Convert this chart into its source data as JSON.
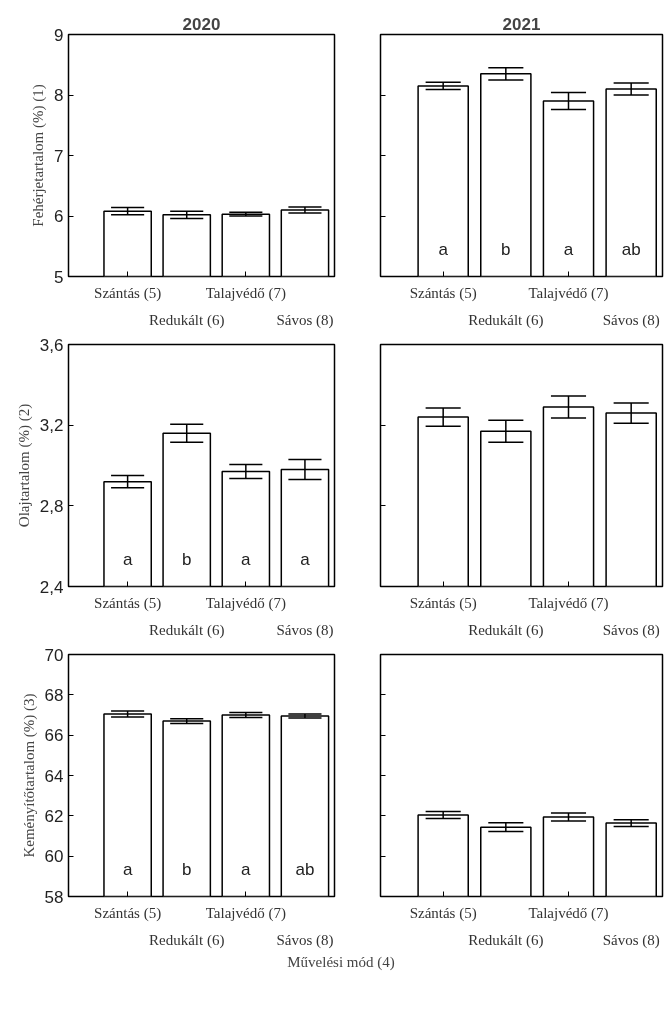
{
  "chart_data": [
    {
      "type": "bar",
      "title": "2020",
      "ylabel": "Fehérjetartalom (%) (1)",
      "categories": [
        "Szántás (5)",
        "Redukált (6)",
        "Talajvédő (7)",
        "Sávos (8)"
      ],
      "values": [
        6.08,
        6.02,
        6.03,
        6.1
      ],
      "errors": [
        0.06,
        0.06,
        0.03,
        0.05
      ],
      "color": "#ffffff",
      "ylim": [
        5,
        9
      ],
      "yticks": [
        5,
        6,
        7,
        8,
        9
      ],
      "grid": false
    },
    {
      "type": "bar",
      "title": "2021",
      "categories": [
        "Szántás (5)",
        "Redukált (6)",
        "Talajvédő (7)",
        "Sávos (8)"
      ],
      "values": [
        8.15,
        8.35,
        7.9,
        8.1
      ],
      "errors": [
        0.06,
        0.1,
        0.14,
        0.1
      ],
      "color": "#ffffff",
      "ylim": [
        5,
        9
      ],
      "yticks": [
        5,
        6,
        7,
        8,
        9
      ],
      "grid": false,
      "tick_labels": "x",
      "annotations": [
        "a",
        "b",
        "a",
        "ab"
      ]
    },
    {
      "type": "bar",
      "ylabel": "Olajtartalom (%) (2)",
      "categories": [
        "Szántás (5)",
        "Redukált (6)",
        "Talajvédő (7)",
        "Sávos (8)"
      ],
      "values": [
        2.92,
        3.16,
        2.97,
        2.98
      ],
      "errors": [
        0.03,
        0.045,
        0.035,
        0.05
      ],
      "color": "#ffffff",
      "ylim": [
        2.4,
        3.6
      ],
      "yticks": [
        {
          "value": 2.4,
          "label": "2,4"
        },
        {
          "value": 2.8,
          "label": "2,8"
        },
        {
          "value": 3.2,
          "label": "3,2"
        },
        {
          "value": 3.6,
          "label": "3,6"
        }
      ],
      "grid": false,
      "annotations": [
        "a",
        "b",
        "a",
        "a"
      ]
    },
    {
      "type": "bar",
      "categories": [
        "Szántás (5)",
        "Redukált (6)",
        "Talajvédő (7)",
        "Sávos (8)"
      ],
      "values": [
        3.24,
        3.17,
        3.29,
        3.26
      ],
      "errors": [
        0.045,
        0.055,
        0.055,
        0.05
      ],
      "color": "#ffffff",
      "ylim": [
        2.4,
        3.6
      ],
      "yticks": [
        {
          "value": 2.4,
          "label": null
        },
        {
          "value": 2.8,
          "label": null
        },
        {
          "value": 3.2,
          "label": null
        },
        {
          "value": 3.6,
          "label": null
        }
      ],
      "grid": false,
      "tick_labels": "x"
    },
    {
      "type": "bar",
      "ylabel": "Keményítőtartalom (%) (3)",
      "xlabel": "Művelési mód (4)",
      "categories": [
        "Szántás (5)",
        "Redukált (6)",
        "Talajvédő (7)",
        "Sávos (8)"
      ],
      "values": [
        67.05,
        66.7,
        67.0,
        66.95
      ],
      "errors": [
        0.15,
        0.12,
        0.12,
        0.1
      ],
      "color": "#ffffff",
      "ylim": [
        58,
        70
      ],
      "yticks": [
        58,
        60,
        62,
        64,
        66,
        68,
        70
      ],
      "grid": false,
      "annotations": [
        "a",
        "b",
        "a",
        "ab"
      ]
    },
    {
      "type": "bar",
      "categories": [
        "Szántás (5)",
        "Redukált (6)",
        "Talajvédő (7)",
        "Sávos (8)"
      ],
      "values": [
        62.04,
        61.44,
        61.94,
        61.64
      ],
      "errors": [
        0.17,
        0.22,
        0.2,
        0.17
      ],
      "color": "#ffffff",
      "ylim": [
        58,
        70
      ],
      "yticks": [
        58,
        60,
        62,
        64,
        66,
        68,
        70
      ],
      "grid": false,
      "tick_labels": "x"
    }
  ]
}
